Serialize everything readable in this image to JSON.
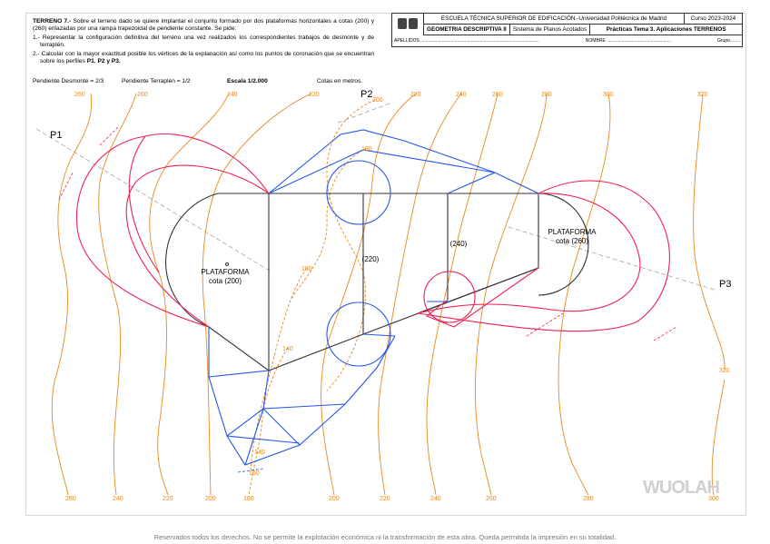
{
  "statement": {
    "intro_bold": "TERRENO 7.-",
    "intro": " Sobre el terreno dado se quiere implantar el conjunto formado por dos plataformas horizontales a cotas (200) y (260) enlazadas por una rampa trapezoidal de pendiente constante. Se pide:",
    "item1": "1.- Representar la configuración definitiva del terreno una vez realizados los correspondientes trabajos de desmonte y de terraplén.",
    "item2_a": "2.- Calcular con la mayor exactitud posible los vértices de la explanación así como los puntos de coronación que se encuentran sobre los perfiles ",
    "item2_b": "P1",
    "item2_c": ", ",
    "item2_d": "P2 y P3."
  },
  "params": {
    "desmonte": "Pendiente Desmonte = 2/3",
    "terraplen": "Pendiente Terraplén = 1/2",
    "escala": "Escala 1/2.000",
    "cotas": "Cotas en metros."
  },
  "header": {
    "school": "ESCUELA TÉCNICA SUPERIOR DE EDIFICACIÓN.-Universidad Politécnica de Madrid",
    "course": "Curso 2023-2024",
    "subject": "GEOMETRIA DESCRIPTIVA II",
    "system": "Sistema de Planos Acotados",
    "practice": "Prácticas Tema 3. Aplicaciones TERRENOS",
    "apellidos": "APELLIDOS ..............................................................................................",
    "nombre": "NOMBRE ...................................................",
    "grupo": "Grupo........"
  },
  "drawing": {
    "profiles": [
      "P1",
      "P2",
      "P3"
    ],
    "platform_label": "PLATAFORMA",
    "platform1_cota": "cota (200)",
    "platform2_cota": "cota (260)",
    "ramp_cotas": [
      "(220)",
      "(240)"
    ],
    "contours_top": [
      "260",
      "260",
      "240",
      "220",
      "200",
      "220",
      "240",
      "260",
      "280",
      "300",
      "320"
    ],
    "contours_bottom": [
      "260",
      "240",
      "220",
      "200",
      "180",
      "200",
      "220",
      "240",
      "260",
      "280",
      "300"
    ],
    "contours_inner": [
      "180",
      "180",
      "140",
      "140",
      "160",
      "320"
    ],
    "colors": {
      "contour": "#e8891e",
      "desmonte": "#2255ee",
      "terraplen": "#ee2255",
      "platform": "#333333"
    }
  },
  "footer": "Reservados todos los derechos. No se permite la explotación económica ni la transformación de esta obra. Queda permitida la impresión en su totalidad.",
  "watermark": "WUOLAH"
}
